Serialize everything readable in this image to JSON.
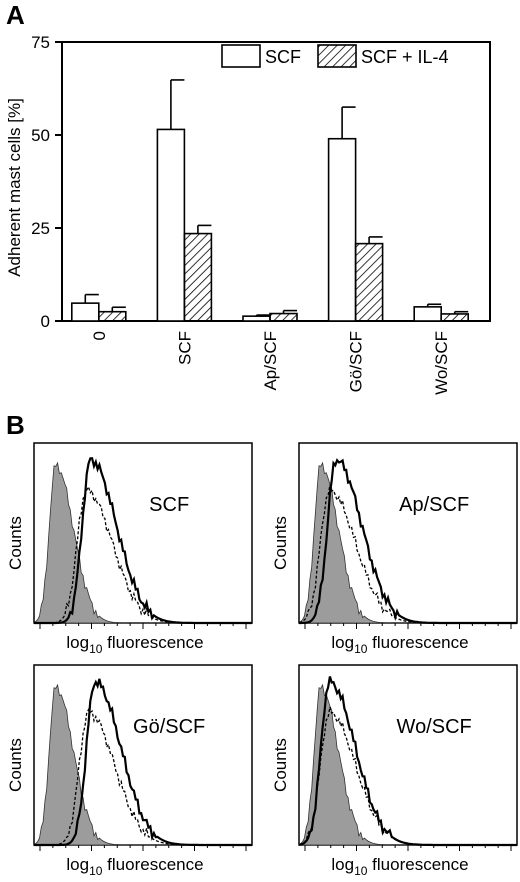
{
  "figure": {
    "panel_a_letter": "A",
    "panel_b_letter": "B"
  },
  "chart_data": [
    {
      "type": "bar",
      "panel": "A",
      "ylabel": "Adherent mast cells [%]",
      "xlabel": "",
      "ylim": [
        0,
        75
      ],
      "yticks": [
        "0",
        "25",
        "50",
        "75"
      ],
      "categories": [
        "0",
        "SCF",
        "Ap/SCF",
        "Gö/SCF",
        "Wo/SCF"
      ],
      "series": [
        {
          "name": "SCF",
          "fill": "open",
          "values": [
            4.8,
            51.5,
            1.3,
            49.0,
            3.8
          ],
          "errors": [
            2.3,
            13.3,
            0.3,
            8.5,
            0.7
          ]
        },
        {
          "name": "SCF + IL-4",
          "fill": "hatched",
          "values": [
            2.5,
            23.5,
            2.0,
            20.8,
            1.9
          ],
          "errors": [
            1.2,
            2.2,
            0.8,
            1.8,
            0.6
          ]
        }
      ],
      "legend_position": "top-right",
      "colors": {
        "stroke": "#000000",
        "fill": "#ffffff",
        "hatch": "#000000"
      }
    },
    {
      "type": "histogram",
      "panel": "B",
      "ylabel": "Counts",
      "xlabel_prefix": "log",
      "xlabel_subscript": "10",
      "xlabel_suffix": " fluorescence",
      "colors": {
        "filled": "#9c9c9c",
        "line": "#000000"
      },
      "plots": [
        {
          "title": "SCF",
          "mode_positions": [
            0.1,
            0.24,
            0.26
          ]
        },
        {
          "title": "Ap/SCF",
          "mode_positions": [
            0.1,
            0.14,
            0.17
          ]
        },
        {
          "title": "Gö/SCF",
          "mode_positions": [
            0.1,
            0.25,
            0.28
          ]
        },
        {
          "title": "Wo/SCF",
          "mode_positions": [
            0.1,
            0.14,
            0.14
          ]
        }
      ]
    }
  ]
}
